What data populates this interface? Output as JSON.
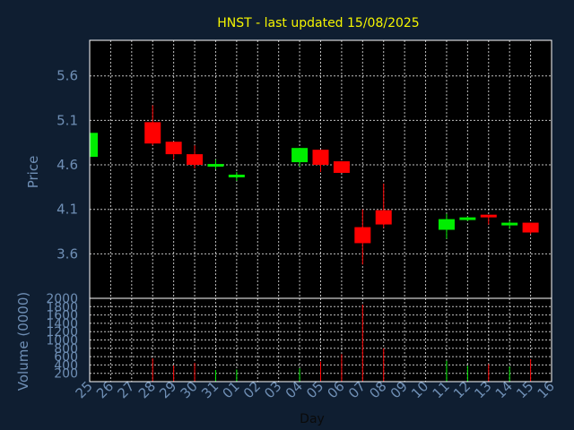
{
  "chart_data": {
    "type": "candlestick",
    "title": "HNST - last updated 15/08/2025",
    "ylabel": "Price",
    "volume_label": "Volume (0000)",
    "xlabel": "Day",
    "price_ticks": [
      "5.6",
      "5.1",
      "4.6",
      "4.1",
      "3.6"
    ],
    "price_tick_values": [
      5.6,
      5.1,
      4.6,
      4.1,
      3.6
    ],
    "ylim": [
      3.1,
      6.0
    ],
    "volume_ticks": [
      "2000",
      "1800",
      "1600",
      "1400",
      "1200",
      "1000",
      "800",
      "600",
      "400",
      "200"
    ],
    "volume_ylim": [
      0,
      2000
    ],
    "x_labels": [
      "25",
      "26",
      "27",
      "28",
      "29",
      "30",
      "31",
      "01",
      "02",
      "03",
      "04",
      "05",
      "06",
      "07",
      "08",
      "09",
      "10",
      "11",
      "12",
      "13",
      "14",
      "15",
      "16"
    ],
    "candles": [
      {
        "day": "25",
        "open": 4.69,
        "close": 4.96,
        "high": 4.96,
        "low": 4.69,
        "volume": 0
      },
      {
        "day": "28",
        "open": 5.08,
        "close": 4.84,
        "high": 5.27,
        "low": 4.82,
        "volume": 560
      },
      {
        "day": "29",
        "open": 4.86,
        "close": 4.72,
        "high": 4.86,
        "low": 4.66,
        "volume": 390
      },
      {
        "day": "30",
        "open": 4.72,
        "close": 4.6,
        "high": 4.82,
        "low": 4.56,
        "volume": 450
      },
      {
        "day": "31",
        "open": 4.58,
        "close": 4.61,
        "high": 4.66,
        "low": 4.55,
        "volume": 280
      },
      {
        "day": "01",
        "open": 4.47,
        "close": 4.49,
        "high": 4.52,
        "low": 4.42,
        "volume": 290
      },
      {
        "day": "04",
        "open": 4.63,
        "close": 4.79,
        "high": 4.79,
        "low": 4.58,
        "volume": 320
      },
      {
        "day": "05",
        "open": 4.77,
        "close": 4.6,
        "high": 4.77,
        "low": 4.52,
        "volume": 480
      },
      {
        "day": "06",
        "open": 4.64,
        "close": 4.51,
        "high": 4.64,
        "low": 4.51,
        "volume": 660
      },
      {
        "day": "07",
        "open": 3.9,
        "close": 3.72,
        "high": 4.1,
        "low": 3.48,
        "volume": 1850
      },
      {
        "day": "08",
        "open": 4.09,
        "close": 3.93,
        "high": 4.39,
        "low": 3.89,
        "volume": 800
      },
      {
        "day": "11",
        "open": 3.87,
        "close": 3.99,
        "high": 4.05,
        "low": 3.77,
        "volume": 500
      },
      {
        "day": "12",
        "open": 4.0,
        "close": 4.01,
        "high": 4.02,
        "low": 3.97,
        "volume": 380
      },
      {
        "day": "13",
        "open": 4.04,
        "close": 4.01,
        "high": 4.04,
        "low": 3.93,
        "volume": 420
      },
      {
        "day": "14",
        "open": 3.93,
        "close": 3.95,
        "high": 3.97,
        "low": 3.88,
        "volume": 360
      },
      {
        "day": "15",
        "open": 3.95,
        "close": 3.84,
        "high": 3.95,
        "low": 3.82,
        "volume": 540
      }
    ],
    "colors": {
      "background": "#0f1e31",
      "plot_background": "#000000",
      "up": "#00ee00",
      "down": "#ff0000",
      "grid": "#ffffff",
      "title": "#f5f500",
      "axis_text": "#6f8fb5"
    },
    "grid": true
  }
}
